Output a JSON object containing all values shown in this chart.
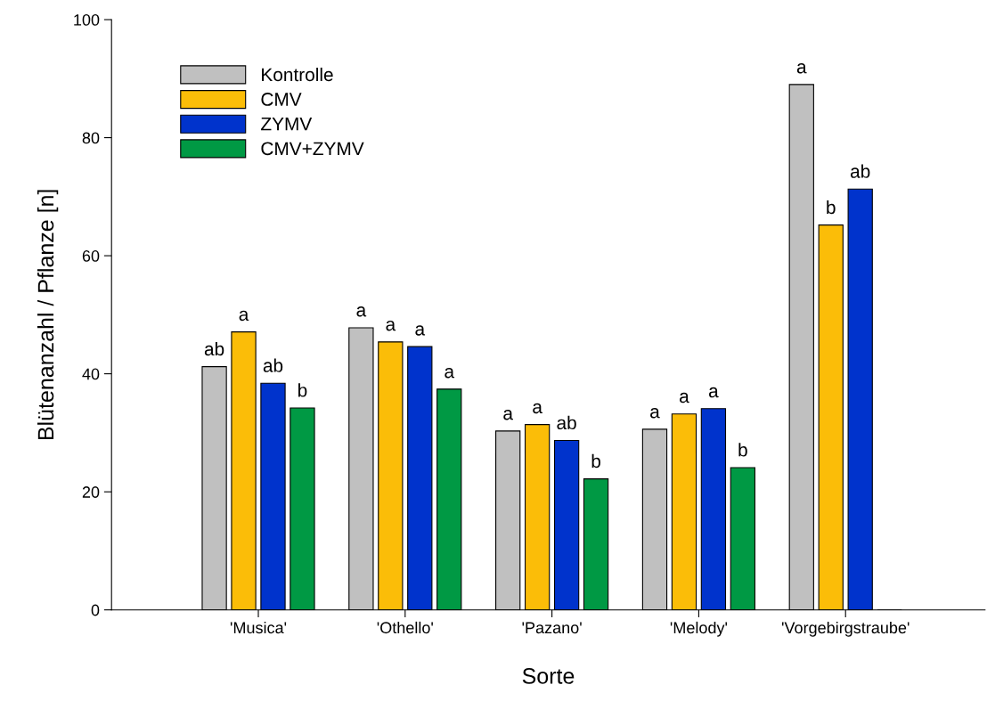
{
  "chart_data": {
    "type": "bar",
    "xlabel": "Sorte",
    "ylabel": "Blütenanzahl / Pflanze [n]",
    "categories": [
      "'Musica'",
      "'Othello'",
      "'Pazano'",
      "'Melody'",
      "'Vorgebirgstraube'"
    ],
    "series": [
      {
        "name": "Kontrolle",
        "color": "#c0c0c0",
        "values": [
          41.2,
          47.8,
          30.3,
          30.6,
          89.0
        ],
        "value_labels": [
          "ab",
          "a",
          "a",
          "a",
          "a"
        ]
      },
      {
        "name": "CMV",
        "color": "#fbbd08",
        "values": [
          47.1,
          45.4,
          31.4,
          33.2,
          65.2
        ],
        "value_labels": [
          "a",
          "a",
          "a",
          "a",
          "b"
        ]
      },
      {
        "name": "ZYMV",
        "color": "#0033cc",
        "values": [
          38.4,
          44.6,
          28.7,
          34.1,
          71.3
        ],
        "value_labels": [
          "ab",
          "a",
          "ab",
          "a",
          "ab"
        ]
      },
      {
        "name": "CMV+ZYMV",
        "color": "#009944",
        "values": [
          34.2,
          37.4,
          22.2,
          24.1,
          0
        ],
        "value_labels": [
          "b",
          "a",
          "b",
          "b",
          null
        ]
      }
    ],
    "ylim": [
      0,
      100
    ],
    "yticks": [
      0,
      20,
      40,
      60,
      80,
      100
    ],
    "legend": "top left",
    "grid": false
  }
}
